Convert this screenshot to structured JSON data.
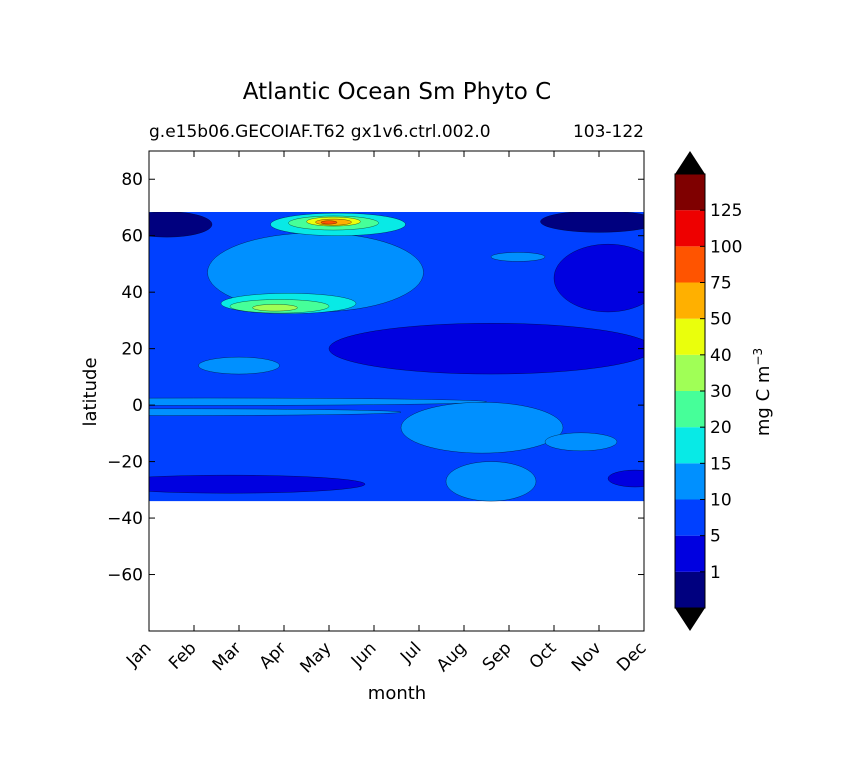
{
  "chart_data": {
    "type": "heatmap",
    "title": "Atlantic Ocean Sm Phyto C",
    "subtitle_left": "g.e15b06.GECOIAF.T62 gx1v6.ctrl.002.0",
    "subtitle_right": "103-122",
    "xlabel": "month",
    "ylabel": "latitude",
    "x_ticks": [
      "Jan",
      "Feb",
      "Mar",
      "Apr",
      "May",
      "Jun",
      "Jul",
      "Aug",
      "Sep",
      "Oct",
      "Nov",
      "Dec"
    ],
    "y_ticks": [
      80,
      60,
      40,
      20,
      0,
      -20,
      -40,
      -60
    ],
    "xlim": [
      1,
      12
    ],
    "ylim": [
      -80,
      90
    ],
    "data_lat_range": [
      -34,
      69
    ],
    "grid": false,
    "colorbar": {
      "label": "mg C m",
      "label_superscript": "−3",
      "levels": [
        1,
        5,
        10,
        15,
        20,
        30,
        40,
        50,
        75,
        100,
        125
      ],
      "level_labels": [
        "1",
        "5",
        "10",
        "15",
        "20",
        "30",
        "40",
        "50",
        "75",
        "100",
        "125"
      ],
      "colors": [
        "#00007f",
        "#0000e0",
        "#0040ff",
        "#0090ff",
        "#08eae6",
        "#46ff99",
        "#a0ff56",
        "#eaff0c",
        "#ffb000",
        "#ff5400",
        "#ee0000",
        "#7f0000"
      ],
      "extend": "both",
      "under_color": "#000000",
      "over_color": "#000000"
    }
  }
}
